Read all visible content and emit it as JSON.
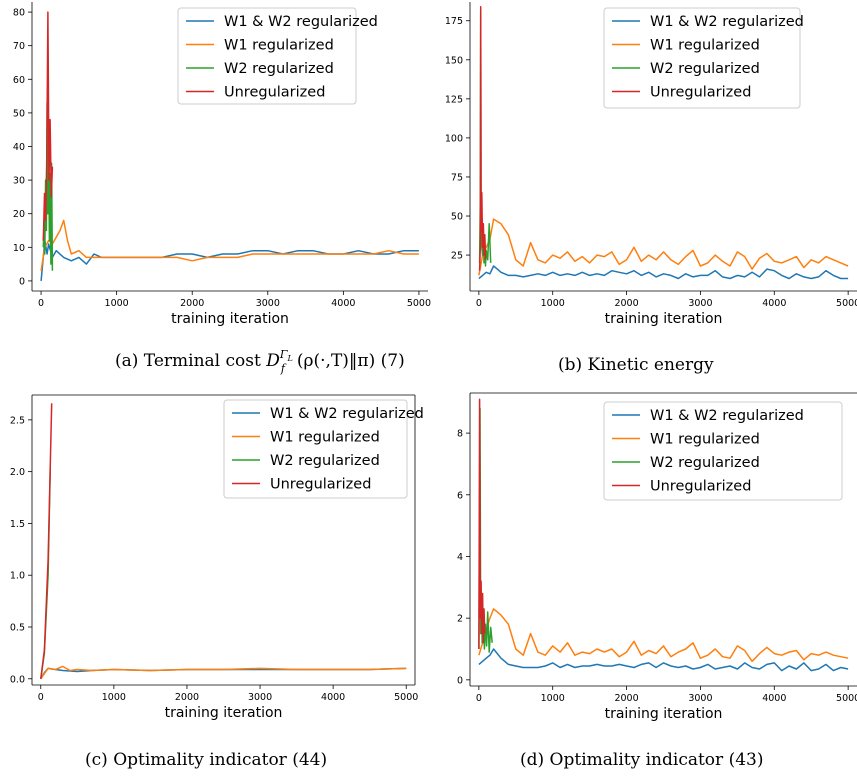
{
  "chart_data": [
    {
      "type": "line",
      "caption": {
        "prefix": "(a) Terminal cost ",
        "D": "D",
        "sup": "Γ",
        "supsub": "L",
        "sub": "f",
        "rest": "(ρ(·,T)‖π) (7)"
      },
      "xlabel": "training iteration",
      "xlim": [
        -120,
        5120
      ],
      "ylim": [
        -3,
        83
      ],
      "xticks": [
        0,
        1000,
        2000,
        3000,
        4000,
        5000
      ],
      "yticks": [
        0,
        10,
        20,
        30,
        40,
        50,
        60,
        70,
        80
      ],
      "legend": "top-right",
      "series": [
        {
          "name": "W1 & W2 regularized",
          "color": "#1f77b4",
          "x": [
            0,
            50,
            80,
            100,
            150,
            200,
            300,
            400,
            500,
            600,
            700,
            800,
            1000,
            1200,
            1400,
            1600,
            1800,
            2000,
            2200,
            2400,
            2600,
            2800,
            3000,
            3200,
            3400,
            3600,
            3800,
            4000,
            4200,
            4400,
            4600,
            4800,
            5000
          ],
          "y": [
            0,
            12,
            8,
            11,
            7,
            9,
            7,
            6,
            7,
            5,
            8,
            7,
            7,
            7,
            7,
            7,
            8,
            8,
            7,
            8,
            8,
            9,
            9,
            8,
            9,
            9,
            8,
            8,
            9,
            8,
            8,
            9,
            9
          ]
        },
        {
          "name": "W1 regularized",
          "color": "#ff7f0e",
          "x": [
            0,
            50,
            100,
            150,
            200,
            250,
            300,
            350,
            400,
            500,
            600,
            800,
            1000,
            1200,
            1400,
            1600,
            1800,
            2000,
            2200,
            2400,
            2600,
            2800,
            3000,
            3200,
            3400,
            3600,
            3800,
            4000,
            4200,
            4400,
            4600,
            4800,
            5000
          ],
          "y": [
            3,
            10,
            12,
            11,
            13,
            15,
            18,
            12,
            8,
            9,
            7,
            7,
            7,
            7,
            7,
            7,
            7,
            6,
            7,
            7,
            7,
            8,
            8,
            8,
            8,
            8,
            8,
            8,
            8,
            8,
            9,
            8,
            8
          ]
        },
        {
          "name": "W2 regularized",
          "color": "#2ca02c",
          "x": [
            30,
            40,
            50,
            60,
            70,
            80,
            90,
            100,
            110,
            120,
            130,
            140,
            150
          ],
          "y": [
            10,
            18,
            8,
            30,
            15,
            53,
            20,
            40,
            12,
            32,
            5,
            35,
            3
          ]
        },
        {
          "name": "Unregularized",
          "color": "#d62728",
          "x": [
            30,
            45,
            60,
            75,
            90,
            105,
            120,
            135,
            150
          ],
          "y": [
            12,
            26,
            18,
            35,
            80,
            30,
            48,
            25,
            34
          ]
        }
      ]
    },
    {
      "type": "line",
      "caption": {
        "text": "(b) Kinetic energy"
      },
      "xlabel": "training iteration",
      "xlim": [
        -120,
        5120
      ],
      "ylim": [
        2,
        187
      ],
      "xticks": [
        0,
        1000,
        2000,
        3000,
        4000,
        5000
      ],
      "yticks": [
        25,
        50,
        75,
        100,
        125,
        150,
        175
      ],
      "legend": "top-right",
      "series": [
        {
          "name": "W1 & W2 regularized",
          "color": "#1f77b4",
          "x": [
            0,
            50,
            100,
            150,
            200,
            250,
            300,
            400,
            500,
            600,
            700,
            800,
            900,
            1000,
            1100,
            1200,
            1300,
            1400,
            1500,
            1600,
            1700,
            1800,
            1900,
            2000,
            2100,
            2200,
            2300,
            2400,
            2500,
            2600,
            2700,
            2800,
            2900,
            3000,
            3100,
            3200,
            3300,
            3400,
            3500,
            3600,
            3700,
            3800,
            3900,
            4000,
            4100,
            4200,
            4300,
            4400,
            4500,
            4600,
            4700,
            4800,
            4900,
            5000
          ],
          "y": [
            10,
            12,
            14,
            13,
            18,
            16,
            14,
            12,
            12,
            11,
            12,
            13,
            12,
            14,
            12,
            13,
            12,
            14,
            12,
            13,
            12,
            15,
            14,
            13,
            15,
            12,
            14,
            11,
            13,
            12,
            10,
            13,
            11,
            12,
            12,
            15,
            11,
            10,
            12,
            11,
            14,
            11,
            16,
            15,
            12,
            10,
            13,
            11,
            10,
            11,
            15,
            12,
            10,
            10
          ]
        },
        {
          "name": "W1 regularized",
          "color": "#ff7f0e",
          "x": [
            0,
            50,
            100,
            150,
            200,
            300,
            400,
            500,
            600,
            700,
            800,
            900,
            1000,
            1100,
            1200,
            1300,
            1400,
            1500,
            1600,
            1700,
            1800,
            1900,
            2000,
            2100,
            2200,
            2300,
            2400,
            2500,
            2600,
            2700,
            2800,
            2900,
            3000,
            3100,
            3200,
            3300,
            3400,
            3500,
            3600,
            3700,
            3800,
            3900,
            4000,
            4100,
            4200,
            4300,
            4400,
            4500,
            4600,
            4700,
            4800,
            4900,
            5000
          ],
          "y": [
            12,
            25,
            30,
            35,
            48,
            45,
            38,
            22,
            18,
            33,
            22,
            20,
            25,
            23,
            27,
            21,
            24,
            20,
            25,
            24,
            27,
            19,
            22,
            30,
            21,
            25,
            22,
            27,
            22,
            19,
            24,
            28,
            18,
            20,
            25,
            21,
            18,
            27,
            24,
            16,
            23,
            26,
            21,
            20,
            22,
            24,
            17,
            22,
            20,
            24,
            22,
            20,
            18
          ]
        },
        {
          "name": "W2 regularized",
          "color": "#2ca02c",
          "x": [
            10,
            20,
            25,
            30,
            40,
            50,
            60,
            70,
            80,
            90,
            100,
            120,
            140,
            160
          ],
          "y": [
            20,
            60,
            180,
            50,
            30,
            25,
            45,
            20,
            35,
            18,
            28,
            22,
            45,
            20
          ]
        },
        {
          "name": "Unregularized",
          "color": "#d62728",
          "x": [
            10,
            20,
            25,
            30,
            40,
            50,
            60,
            70,
            80,
            90
          ],
          "y": [
            15,
            30,
            184,
            40,
            65,
            30,
            45,
            25,
            38,
            22
          ]
        }
      ]
    },
    {
      "type": "line",
      "caption": {
        "text": "(c) Optimality indicator (44)"
      },
      "xlabel": "training iteration",
      "xlim": [
        -120,
        5120
      ],
      "ylim": [
        -0.06,
        2.74
      ],
      "xticks": [
        0,
        1000,
        2000,
        3000,
        4000,
        5000
      ],
      "yticks": [
        0.0,
        0.5,
        1.0,
        1.5,
        2.0,
        2.5
      ],
      "legend": "top-right",
      "series": [
        {
          "name": "W1 & W2 regularized",
          "color": "#1f77b4",
          "x": [
            0,
            50,
            100,
            200,
            300,
            500,
            700,
            1000,
            1500,
            2000,
            2500,
            3000,
            3500,
            4000,
            4500,
            5000
          ],
          "y": [
            0.0,
            0.06,
            0.1,
            0.09,
            0.08,
            0.07,
            0.08,
            0.09,
            0.08,
            0.09,
            0.09,
            0.09,
            0.09,
            0.09,
            0.09,
            0.1
          ]
        },
        {
          "name": "W1 regularized",
          "color": "#ff7f0e",
          "x": [
            0,
            50,
            100,
            200,
            300,
            400,
            500,
            700,
            1000,
            1500,
            2000,
            2500,
            3000,
            3500,
            4000,
            4500,
            5000
          ],
          "y": [
            0.0,
            0.05,
            0.1,
            0.09,
            0.12,
            0.08,
            0.09,
            0.08,
            0.09,
            0.08,
            0.09,
            0.09,
            0.1,
            0.09,
            0.09,
            0.09,
            0.1
          ]
        },
        {
          "name": "W2 regularized",
          "color": "#2ca02c",
          "x": [
            0,
            50,
            100,
            130
          ],
          "y": [
            0.0,
            0.25,
            1.0,
            2.05
          ]
        },
        {
          "name": "Unregularized",
          "color": "#d62728",
          "x": [
            0,
            50,
            100,
            150
          ],
          "y": [
            0.0,
            0.28,
            1.15,
            2.66
          ]
        }
      ]
    },
    {
      "type": "line",
      "caption": {
        "text": "(d) Optimality indicator (43)"
      },
      "xlabel": "training iteration",
      "xlim": [
        -120,
        5120
      ],
      "ylim": [
        -0.2,
        9.3
      ],
      "xticks": [
        0,
        1000,
        2000,
        3000,
        4000,
        5000
      ],
      "yticks": [
        0,
        2,
        4,
        6,
        8
      ],
      "legend": "top-right",
      "series": [
        {
          "name": "W1 & W2 regularized",
          "color": "#1f77b4",
          "x": [
            0,
            50,
            100,
            150,
            200,
            300,
            400,
            500,
            600,
            700,
            800,
            900,
            1000,
            1100,
            1200,
            1300,
            1400,
            1500,
            1600,
            1700,
            1800,
            1900,
            2000,
            2100,
            2200,
            2300,
            2400,
            2500,
            2600,
            2700,
            2800,
            2900,
            3000,
            3100,
            3200,
            3300,
            3400,
            3500,
            3600,
            3700,
            3800,
            3900,
            4000,
            4100,
            4200,
            4300,
            4400,
            4500,
            4600,
            4700,
            4800,
            4900,
            5000
          ],
          "y": [
            0.5,
            0.6,
            0.7,
            0.8,
            1.0,
            0.7,
            0.5,
            0.45,
            0.4,
            0.4,
            0.4,
            0.45,
            0.55,
            0.4,
            0.5,
            0.4,
            0.45,
            0.45,
            0.5,
            0.45,
            0.45,
            0.5,
            0.45,
            0.4,
            0.5,
            0.55,
            0.4,
            0.55,
            0.45,
            0.4,
            0.45,
            0.35,
            0.4,
            0.5,
            0.35,
            0.4,
            0.45,
            0.35,
            0.55,
            0.4,
            0.35,
            0.5,
            0.55,
            0.3,
            0.45,
            0.35,
            0.55,
            0.3,
            0.35,
            0.5,
            0.3,
            0.4,
            0.35
          ]
        },
        {
          "name": "W1 regularized",
          "color": "#ff7f0e",
          "x": [
            0,
            50,
            100,
            150,
            200,
            300,
            400,
            500,
            600,
            700,
            800,
            900,
            1000,
            1100,
            1200,
            1300,
            1400,
            1500,
            1600,
            1700,
            1800,
            1900,
            2000,
            2100,
            2200,
            2300,
            2400,
            2500,
            2600,
            2700,
            2800,
            2900,
            3000,
            3100,
            3200,
            3300,
            3400,
            3500,
            3600,
            3700,
            3800,
            3900,
            4000,
            4100,
            4200,
            4300,
            4400,
            4500,
            4600,
            4700,
            4800,
            4900,
            5000
          ],
          "y": [
            0.8,
            1.2,
            1.6,
            2.0,
            2.3,
            2.1,
            1.8,
            1.0,
            0.8,
            1.5,
            0.9,
            0.8,
            1.1,
            0.9,
            1.2,
            0.8,
            0.9,
            0.85,
            1.0,
            0.9,
            1.0,
            0.75,
            0.9,
            1.25,
            0.8,
            0.95,
            0.85,
            1.1,
            0.75,
            0.9,
            1.0,
            1.2,
            0.7,
            0.8,
            1.0,
            0.75,
            0.7,
            1.1,
            0.95,
            0.6,
            0.85,
            1.05,
            0.85,
            0.8,
            0.9,
            0.95,
            0.65,
            0.85,
            0.8,
            0.9,
            0.8,
            0.75,
            0.7
          ]
        },
        {
          "name": "W2 regularized",
          "color": "#2ca02c",
          "x": [
            0,
            15,
            25,
            35,
            45,
            60,
            75,
            90,
            105,
            120,
            140,
            160,
            180
          ],
          "y": [
            1.0,
            8.8,
            1.5,
            2.5,
            1.2,
            2.0,
            1.0,
            1.8,
            1.1,
            2.2,
            0.9,
            1.7,
            1.2
          ]
        },
        {
          "name": "Unregularized",
          "color": "#d62728",
          "x": [
            0,
            10,
            20,
            30,
            40,
            50,
            60,
            70,
            80
          ],
          "y": [
            1.0,
            9.1,
            2.0,
            3.2,
            1.5,
            2.8,
            1.2,
            2.3,
            1.5
          ]
        }
      ]
    }
  ]
}
